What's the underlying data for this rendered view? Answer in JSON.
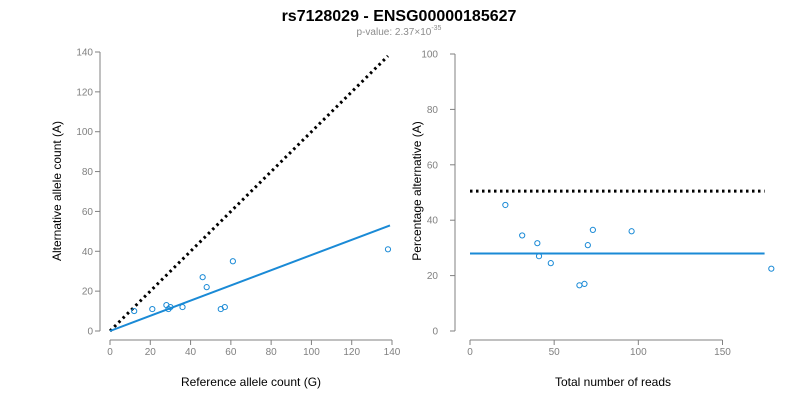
{
  "title": "rs7128029 - ENSG00000185627",
  "subtitle": {
    "prefix": "p-value: 2.37",
    "times": "×",
    "base": "10",
    "exponent": "-35"
  },
  "colors": {
    "points": "#1a8ad6",
    "fit_line": "#1a8ad6",
    "reference_line": "#000000",
    "axis": "#808080",
    "tick_text": "#808080"
  },
  "chart_data": [
    {
      "type": "scatter",
      "title": "",
      "xlabel": "Reference allele count (G)",
      "ylabel": "Alternative allele count (A)",
      "xlim": [
        0,
        140
      ],
      "ylim": [
        0,
        140
      ],
      "xticks": [
        "0",
        "20",
        "40",
        "60",
        "80",
        "100",
        "120",
        "140"
      ],
      "yticks": [
        "0",
        "20",
        "40",
        "60",
        "80",
        "100",
        "120",
        "140"
      ],
      "grid": false,
      "points": {
        "x": [
          12,
          21,
          28,
          29,
          30,
          36,
          46,
          48,
          55,
          57,
          61,
          138
        ],
        "y": [
          10,
          11,
          13,
          11,
          12,
          12,
          27,
          22,
          11,
          12,
          35,
          41
        ]
      },
      "lines": [
        {
          "style": "dotted",
          "color": "#000000",
          "x": [
            0,
            138
          ],
          "y": [
            0,
            138
          ]
        },
        {
          "style": "solid",
          "color": "#1a8ad6",
          "x": [
            0,
            139
          ],
          "y": [
            0,
            53
          ]
        }
      ]
    },
    {
      "type": "scatter",
      "title": "",
      "xlabel": "Total number of reads",
      "ylabel": "Percentage alternative (A)",
      "xlim": [
        0,
        180
      ],
      "ylim": [
        0,
        100
      ],
      "xticks": [
        "0",
        "50",
        "100",
        "150"
      ],
      "yticks": [
        "0",
        "20",
        "40",
        "60",
        "80",
        "100"
      ],
      "grid": false,
      "points": {
        "x": [
          21,
          31,
          40,
          41,
          48,
          65,
          68,
          70,
          73,
          96,
          179
        ],
        "y": [
          45.5,
          34.5,
          31.7,
          27,
          24.5,
          16.5,
          17,
          31,
          36.5,
          36,
          22.5
        ]
      },
      "lines": [
        {
          "style": "dotted",
          "color": "#000000",
          "x": [
            0,
            175
          ],
          "y": [
            50.5,
            50.5
          ]
        },
        {
          "style": "solid",
          "color": "#1a8ad6",
          "x": [
            0,
            175
          ],
          "y": [
            28,
            28
          ]
        }
      ]
    }
  ]
}
